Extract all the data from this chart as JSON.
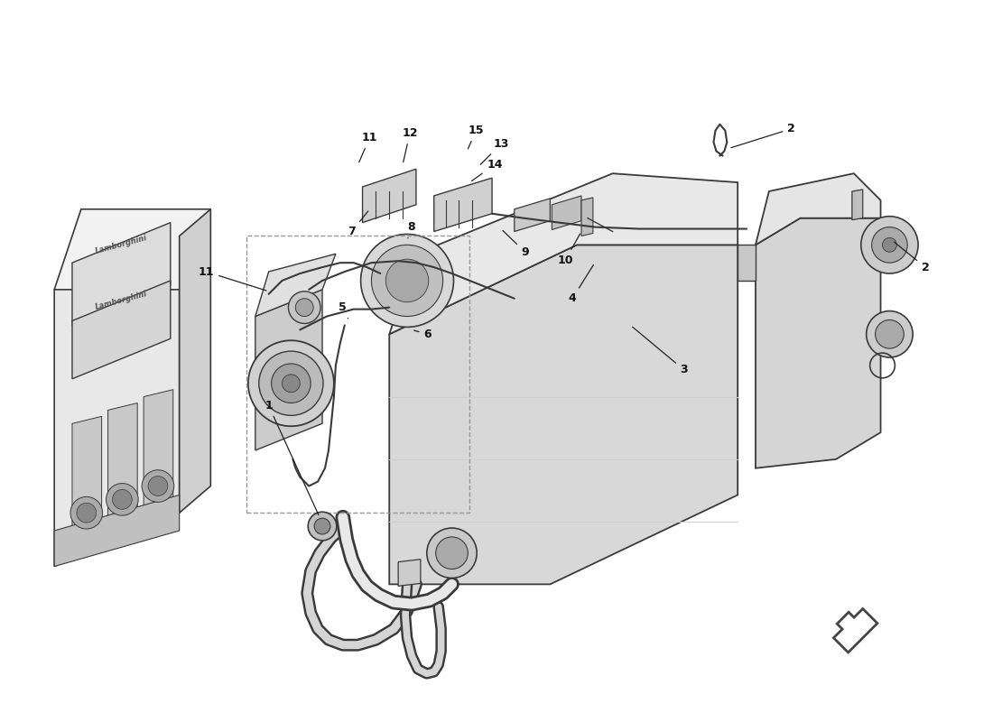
{
  "background_color": "#ffffff",
  "fig_width": 11.0,
  "fig_height": 8.0,
  "dpi": 100,
  "line_color": "#3a3a3a",
  "light_fill": "#e8e8e8",
  "mid_fill": "#d0d0d0",
  "dark_fill": "#b0b0b0",
  "very_light": "#f2f2f2",
  "arrow_color": "#222222",
  "label_color": "#111111",
  "label_fontsize": 9,
  "border_color": "#888888"
}
